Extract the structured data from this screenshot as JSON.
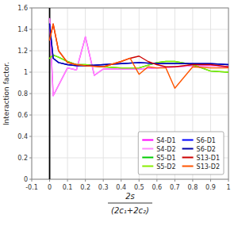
{
  "chart_data": {
    "type": "line",
    "ylabel": "Interaction factor.",
    "xlabel": [
      "2s",
      "(2c₁+2c₂)"
    ],
    "xlim": [
      -0.1,
      1.0
    ],
    "ylim": [
      0,
      1.6
    ],
    "xticks": [
      -0.1,
      0.0,
      0.1,
      0.2,
      0.3,
      0.4,
      0.5,
      0.6,
      0.7,
      0.8,
      0.9,
      1.0
    ],
    "yticks": [
      0,
      0.2,
      0.4,
      0.6,
      0.8,
      1.0,
      1.2,
      1.4,
      1.6
    ],
    "grid": true,
    "legend": "lower right",
    "reference_lines": [
      {
        "x": 0
      }
    ],
    "series": [
      {
        "name": "S4-D1",
        "color": "#FF00FF",
        "x": [
          0.0,
          0.02,
          0.1,
          0.15,
          0.2,
          0.25,
          0.3,
          0.4,
          0.5,
          0.6,
          0.7,
          0.8,
          0.9,
          1.0
        ],
        "values": [
          1.5,
          0.78,
          1.04,
          1.02,
          1.33,
          0.97,
          1.03,
          1.03,
          1.03,
          1.04,
          1.05,
          1.06,
          1.06,
          1.05
        ]
      },
      {
        "name": "S4-D2",
        "color": "#FF88FF",
        "x": [
          0.0,
          0.02,
          0.1,
          0.15,
          0.2,
          0.25,
          0.3,
          0.4,
          0.5,
          0.6,
          0.7,
          0.8,
          0.9,
          1.0
        ],
        "values": [
          1.5,
          0.78,
          1.04,
          1.02,
          1.33,
          0.97,
          1.03,
          1.03,
          1.03,
          1.04,
          1.05,
          1.06,
          1.06,
          1.05
        ]
      },
      {
        "name": "S5-D1",
        "color": "#00CC00",
        "x": [
          0.0,
          0.02,
          0.05,
          0.1,
          0.15,
          0.2,
          0.3,
          0.4,
          0.5,
          0.6,
          0.65,
          0.7,
          0.8,
          0.9,
          1.0
        ],
        "values": [
          1.13,
          1.16,
          1.14,
          1.1,
          1.07,
          1.07,
          1.05,
          1.04,
          1.04,
          1.09,
          1.1,
          1.1,
          1.07,
          1.01,
          1.0
        ]
      },
      {
        "name": "S5-D2",
        "color": "#88EE00",
        "x": [
          0.0,
          0.02,
          0.05,
          0.1,
          0.15,
          0.2,
          0.3,
          0.4,
          0.5,
          0.6,
          0.65,
          0.7,
          0.8,
          0.9,
          1.0
        ],
        "values": [
          1.13,
          1.16,
          1.14,
          1.1,
          1.07,
          1.07,
          1.05,
          1.04,
          1.04,
          1.09,
          1.1,
          1.1,
          1.07,
          1.01,
          1.0
        ]
      },
      {
        "name": "S6-D1",
        "color": "#0000FF",
        "x": [
          0.0,
          0.02,
          0.05,
          0.1,
          0.15,
          0.2,
          0.3,
          0.4,
          0.5,
          0.6,
          0.7,
          0.8,
          0.9,
          1.0
        ],
        "values": [
          1.45,
          1.13,
          1.09,
          1.07,
          1.06,
          1.06,
          1.07,
          1.08,
          1.09,
          1.08,
          1.08,
          1.08,
          1.08,
          1.07
        ]
      },
      {
        "name": "S6-D2",
        "color": "#0000AA",
        "x": [
          0.0,
          0.02,
          0.05,
          0.1,
          0.15,
          0.2,
          0.3,
          0.4,
          0.5,
          0.6,
          0.7,
          0.8,
          0.9,
          1.0
        ],
        "values": [
          1.45,
          1.13,
          1.09,
          1.07,
          1.06,
          1.06,
          1.07,
          1.08,
          1.09,
          1.08,
          1.08,
          1.08,
          1.08,
          1.07
        ]
      },
      {
        "name": "S13-D1",
        "color": "#CC0000",
        "x": [
          0.0,
          0.02,
          0.05,
          0.1,
          0.15,
          0.2,
          0.3,
          0.4,
          0.45,
          0.5,
          0.55,
          0.6,
          0.65,
          0.7,
          0.8,
          0.9,
          1.0
        ],
        "values": [
          1.3,
          1.45,
          1.2,
          1.09,
          1.07,
          1.06,
          1.05,
          1.1,
          1.13,
          1.15,
          1.1,
          1.07,
          1.05,
          1.05,
          1.07,
          1.07,
          1.05
        ]
      },
      {
        "name": "S13-D2",
        "color": "#FF5500",
        "x": [
          0.0,
          0.02,
          0.05,
          0.1,
          0.15,
          0.2,
          0.3,
          0.4,
          0.45,
          0.5,
          0.55,
          0.6,
          0.65,
          0.7,
          0.8,
          0.9,
          1.0
        ],
        "values": [
          1.3,
          1.45,
          1.2,
          1.09,
          1.07,
          1.06,
          1.05,
          1.1,
          1.13,
          0.98,
          1.05,
          1.04,
          1.04,
          0.85,
          1.05,
          1.04,
          1.04
        ]
      }
    ]
  }
}
